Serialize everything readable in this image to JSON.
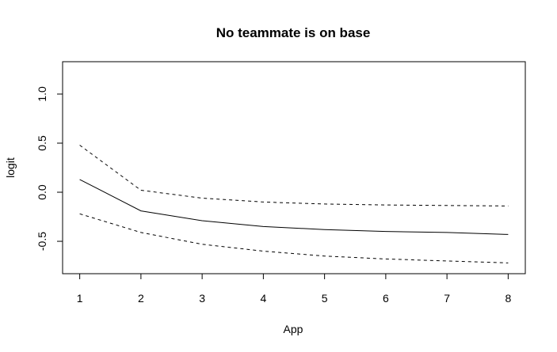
{
  "chart_data": {
    "type": "line",
    "title": "No teammate is on base",
    "xlabel": "App",
    "ylabel": "logit",
    "x": [
      1,
      2,
      3,
      4,
      5,
      6,
      7,
      8
    ],
    "xticks": [
      "1",
      "2",
      "3",
      "4",
      "5",
      "6",
      "7",
      "8"
    ],
    "yticks": [
      "-0.5",
      "0.0",
      "0.5",
      "1.0"
    ],
    "xlim": [
      0.72,
      8.28
    ],
    "ylim": [
      -0.83,
      1.33
    ],
    "grid": false,
    "series": [
      {
        "role": "estimate",
        "style": "solid",
        "color": "#000000",
        "values": [
          0.13,
          -0.19,
          -0.29,
          -0.35,
          -0.38,
          -0.4,
          -0.41,
          -0.43
        ]
      },
      {
        "role": "upper",
        "style": "dashed",
        "color": "#000000",
        "values": [
          0.48,
          0.02,
          -0.06,
          -0.1,
          -0.12,
          -0.13,
          -0.135,
          -0.14
        ]
      },
      {
        "role": "lower",
        "style": "dashed",
        "color": "#000000",
        "values": [
          -0.22,
          -0.41,
          -0.53,
          -0.6,
          -0.65,
          -0.68,
          -0.7,
          -0.72
        ]
      }
    ]
  }
}
